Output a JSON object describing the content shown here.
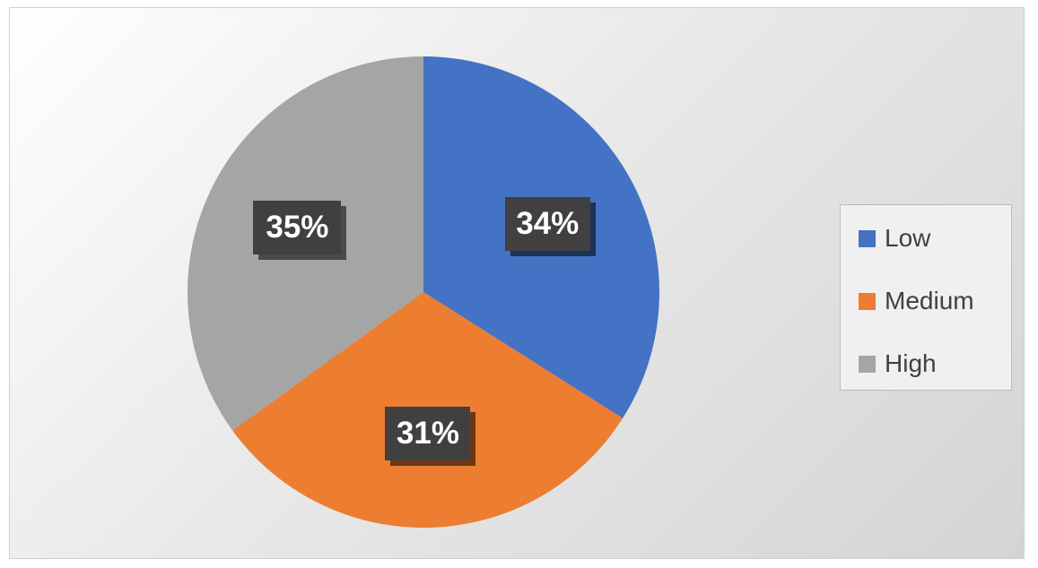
{
  "chart_data": {
    "type": "pie",
    "categories": [
      "Low",
      "Medium",
      "High"
    ],
    "values": [
      34,
      31,
      35
    ],
    "labels": [
      "34%",
      "31%",
      "35%"
    ],
    "colors": [
      "#4472C4",
      "#ED7D31",
      "#A5A5A5"
    ],
    "legend_position": "right",
    "start_angle_deg": 0,
    "direction": "clockwise"
  },
  "legend": {
    "items": [
      {
        "label": "Low",
        "color": "#4472C4"
      },
      {
        "label": "Medium",
        "color": "#ED7D31"
      },
      {
        "label": "High",
        "color": "#A5A5A5"
      }
    ]
  }
}
